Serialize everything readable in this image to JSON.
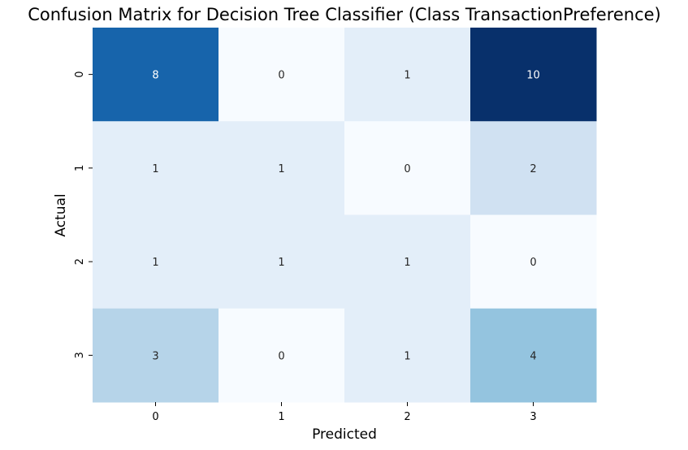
{
  "chart_data": {
    "type": "heatmap",
    "title": "Confusion Matrix for Decision Tree Classifier (Class TransactionPreference)",
    "xlabel": "Predicted",
    "ylabel": "Actual",
    "x_categories": [
      "0",
      "1",
      "2",
      "3"
    ],
    "y_categories": [
      "0",
      "1",
      "2",
      "3"
    ],
    "values": [
      [
        8,
        0,
        1,
        10
      ],
      [
        1,
        1,
        0,
        2
      ],
      [
        1,
        1,
        1,
        0
      ],
      [
        3,
        0,
        1,
        4
      ]
    ],
    "colormap": "Blues",
    "value_range": [
      0,
      10
    ],
    "colorbar": false,
    "annotations": true
  }
}
